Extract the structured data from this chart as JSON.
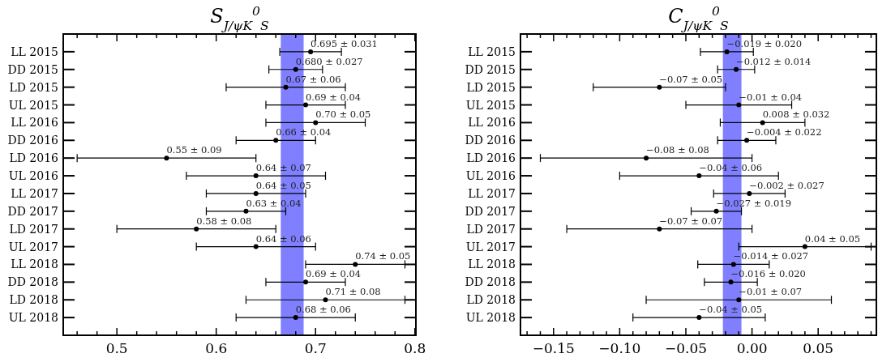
{
  "chart_data": [
    {
      "type": "scatter",
      "orientation": "horizontal",
      "title": "S$_{J/ψK}$$^{0}$$_{S}$",
      "marker": "circle",
      "categories": [
        "LL 2015",
        "DD 2015",
        "LD 2015",
        "UL 2015",
        "LL 2016",
        "DD 2016",
        "LD 2016",
        "UL 2016",
        "LL 2017",
        "DD 2017",
        "LD 2017",
        "UL 2017",
        "LL 2018",
        "DD 2018",
        "LD 2018",
        "UL 2018"
      ],
      "series": [
        {
          "color": "#000000",
          "values": [
            0.695,
            0.68,
            0.67,
            0.69,
            0.7,
            0.66,
            0.55,
            0.64,
            0.64,
            0.63,
            0.58,
            0.64,
            0.74,
            0.69,
            0.71,
            0.68
          ],
          "errors": [
            0.031,
            0.027,
            0.06,
            0.04,
            0.05,
            0.04,
            0.09,
            0.07,
            0.05,
            0.04,
            0.08,
            0.06,
            0.05,
            0.04,
            0.08,
            0.06
          ],
          "value_labels": [
            "0.695 ± 0.031",
            "0.680 ± 0.027",
            "0.67 ± 0.06",
            "0.69 ± 0.04",
            "0.70 ± 0.05",
            "0.66 ± 0.04",
            "0.55 ± 0.09",
            "0.64 ± 0.07",
            "0.64 ± 0.05",
            "0.63 ± 0.04",
            "0.58 ± 0.08",
            "0.64 ± 0.06",
            "0.74 ± 0.05",
            "0.69 ± 0.04",
            "0.71 ± 0.08",
            "0.68 ± 0.06"
          ]
        }
      ],
      "xlim": [
        0.446,
        0.801
      ],
      "xticks": [
        {
          "value": 0.46,
          "label": null
        },
        {
          "value": 0.48,
          "label": null
        },
        0.5,
        {
          "value": 0.52,
          "label": null
        },
        {
          "value": 0.54,
          "label": null
        },
        {
          "value": 0.56,
          "label": null
        },
        {
          "value": 0.58,
          "label": null
        },
        0.6,
        {
          "value": 0.62,
          "label": null
        },
        {
          "value": 0.64,
          "label": null
        },
        {
          "value": 0.66,
          "label": null
        },
        {
          "value": 0.68,
          "label": null
        },
        0.7,
        {
          "value": 0.72,
          "label": null
        },
        {
          "value": 0.74,
          "label": null
        },
        {
          "value": 0.76,
          "label": null
        },
        {
          "value": 0.78,
          "label": null
        },
        0.8
      ],
      "bands": [
        {
          "axis": "x",
          "from": 0.665,
          "to": 0.688,
          "color": "#7f7fff"
        }
      ]
    },
    {
      "type": "scatter",
      "orientation": "horizontal",
      "title": "C$_{J/ψK}$$^{0}$$_{S}$",
      "marker": "circle",
      "categories": [
        "LL 2015",
        "DD 2015",
        "LD 2015",
        "UL 2015",
        "LL 2016",
        "DD 2016",
        "LD 2016",
        "UL 2016",
        "LL 2017",
        "DD 2017",
        "LD 2017",
        "UL 2017",
        "LL 2018",
        "DD 2018",
        "LD 2018",
        "UL 2018"
      ],
      "series": [
        {
          "color": "#000000",
          "values": [
            -0.019,
            -0.012,
            -0.07,
            -0.01,
            0.008,
            -0.004,
            -0.08,
            -0.04,
            -0.002,
            -0.027,
            -0.07,
            0.04,
            -0.014,
            -0.016,
            -0.01,
            -0.04
          ],
          "errors": [
            0.02,
            0.014,
            0.05,
            0.04,
            0.032,
            0.022,
            0.08,
            0.06,
            0.027,
            0.019,
            0.07,
            0.05,
            0.027,
            0.02,
            0.07,
            0.05
          ],
          "value_labels": [
            "−0.019 ± 0.020",
            "−0.012 ± 0.014",
            "−0.07 ± 0.05",
            "−0.01 ± 0.04",
            "0.008 ± 0.032",
            "−0.004 ± 0.022",
            "−0.08 ± 0.08",
            "−0.04 ± 0.06",
            "−0.002 ± 0.027",
            "−0.027 ± 0.019",
            "−0.07 ± 0.07",
            "0.04 ± 0.05",
            "−0.014 ± 0.027",
            "−0.016 ± 0.020",
            "−0.01 ± 0.07",
            "−0.04 ± 0.05"
          ]
        }
      ],
      "xlim": [
        -0.175,
        0.094
      ],
      "xticks": [
        {
          "value": -0.17,
          "label": null
        },
        {
          "value": -0.16,
          "label": null
        },
        {
          "value": -0.15,
          "label": "−0.15"
        },
        {
          "value": -0.14,
          "label": null
        },
        {
          "value": -0.13,
          "label": null
        },
        {
          "value": -0.12,
          "label": null
        },
        {
          "value": -0.11,
          "label": null
        },
        {
          "value": -0.1,
          "label": "−0.10"
        },
        {
          "value": -0.09,
          "label": null
        },
        {
          "value": -0.08,
          "label": null
        },
        {
          "value": -0.07,
          "label": null
        },
        {
          "value": -0.06,
          "label": null
        },
        {
          "value": -0.05,
          "label": "−0.05"
        },
        {
          "value": -0.04,
          "label": null
        },
        {
          "value": -0.03,
          "label": null
        },
        {
          "value": -0.02,
          "label": null
        },
        {
          "value": -0.01,
          "label": null
        },
        {
          "value": 0,
          "label": "0.00"
        },
        {
          "value": 0.01,
          "label": null
        },
        {
          "value": 0.02,
          "label": null
        },
        {
          "value": 0.03,
          "label": null
        },
        {
          "value": 0.04,
          "label": null
        },
        {
          "value": 0.05,
          "label": "0.05"
        },
        {
          "value": 0.06,
          "label": null
        },
        {
          "value": 0.07,
          "label": null
        },
        {
          "value": 0.08,
          "label": null
        },
        {
          "value": 0.09,
          "label": null
        }
      ],
      "bands": [
        {
          "axis": "x",
          "from": -0.022,
          "to": -0.008,
          "color": "#7f7fff"
        }
      ]
    }
  ]
}
